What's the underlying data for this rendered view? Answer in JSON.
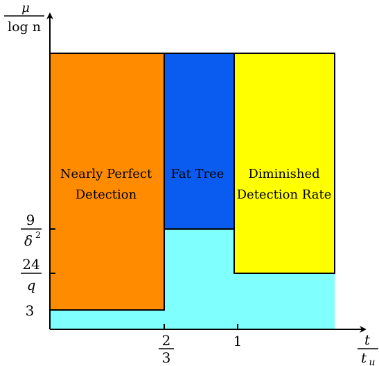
{
  "colors": {
    "orange": "#FF8C00",
    "blue": "#0A5CF0",
    "yellow": "#FFFF00",
    "cyan": "#80FFFF",
    "outline": "#000000"
  },
  "axes": {
    "y_label": {
      "num": "μ",
      "den": "log n"
    },
    "x_label": {
      "num": "t",
      "den": "t",
      "den_sub": "u"
    },
    "y_ticks": [
      {
        "id": "nine-over-delta-sq",
        "num": "9",
        "den": "δ",
        "den_sup": "2"
      },
      {
        "id": "twentyfour-over-q",
        "num": "24",
        "den": "q"
      },
      {
        "id": "three",
        "text": "3"
      }
    ],
    "x_ticks": [
      {
        "id": "two-thirds",
        "num": "2",
        "den": "3"
      },
      {
        "id": "one",
        "text": "1"
      }
    ]
  },
  "regions": {
    "orange": {
      "line1": "Nearly Perfect",
      "line2": "Detection"
    },
    "blue": {
      "line1": "Fat Tree"
    },
    "yellow": {
      "line1": "Diminished",
      "line2": "Detection Rate"
    }
  }
}
